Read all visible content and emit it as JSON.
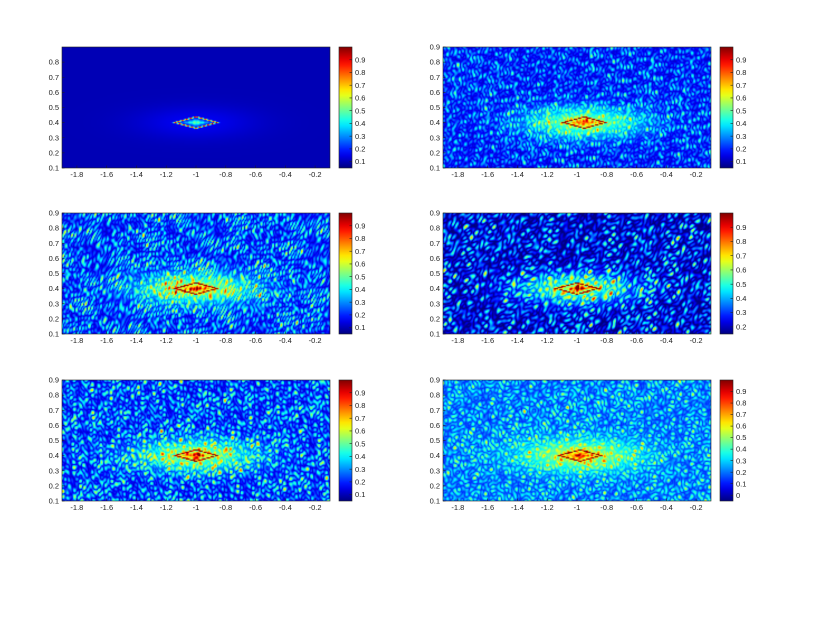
{
  "chart_data": [
    {
      "type": "heatmap",
      "panel": 1,
      "noise_level": 0.0,
      "xlim": [
        -1.9,
        -0.1
      ],
      "ylim": [
        0.1,
        0.9
      ],
      "x_ticks": [
        "-1.8",
        "-1.6",
        "-1.4",
        "-1.2",
        "-1",
        "-0.8",
        "-0.6",
        "-0.4",
        "-0.2"
      ],
      "y_ticks": [
        "0.1",
        "0.2",
        "0.3",
        "0.4",
        "0.5",
        "0.6",
        "0.7",
        "0.8"
      ],
      "colorbar_ticks": [
        "0.1",
        "0.2",
        "0.3",
        "0.4",
        "0.5",
        "0.6",
        "0.7",
        "0.8",
        "0.9"
      ],
      "clim": [
        0.05,
        1.0
      ],
      "peak_center": [
        -1.0,
        0.4
      ],
      "peak_extent_x": [
        -1.15,
        -0.85
      ],
      "peak_extent_y": [
        0.36,
        0.44
      ]
    },
    {
      "type": "heatmap",
      "panel": 2,
      "noise_level": 0.5,
      "xlim": [
        -1.9,
        -0.1
      ],
      "ylim": [
        0.1,
        0.9
      ],
      "x_ticks": [
        "-1.8",
        "-1.6",
        "-1.4",
        "-1.2",
        "-1",
        "-0.8",
        "-0.6",
        "-0.4",
        "-0.2"
      ],
      "y_ticks": [
        "0.1",
        "0.2",
        "0.3",
        "0.4",
        "0.5",
        "0.6",
        "0.7",
        "0.8",
        "0.9"
      ],
      "colorbar_ticks": [
        "0.1",
        "0.2",
        "0.3",
        "0.4",
        "0.5",
        "0.6",
        "0.7",
        "0.8",
        "0.9"
      ],
      "clim": [
        0.05,
        1.0
      ],
      "peak_center": [
        -0.95,
        0.4
      ],
      "peak_extent_x": [
        -1.1,
        -0.8
      ],
      "peak_extent_y": [
        0.36,
        0.44
      ]
    },
    {
      "type": "heatmap",
      "panel": 3,
      "noise_level": 0.7,
      "xlim": [
        -1.9,
        -0.1
      ],
      "ylim": [
        0.1,
        0.9
      ],
      "x_ticks": [
        "-1.8",
        "-1.6",
        "-1.4",
        "-1.2",
        "-1",
        "-0.8",
        "-0.6",
        "-0.4",
        "-0.2"
      ],
      "y_ticks": [
        "0.1",
        "0.2",
        "0.3",
        "0.4",
        "0.5",
        "0.6",
        "0.7",
        "0.8",
        "0.9"
      ],
      "colorbar_ticks": [
        "0.1",
        "0.2",
        "0.3",
        "0.4",
        "0.5",
        "0.6",
        "0.7",
        "0.8",
        "0.9"
      ],
      "clim": [
        0.05,
        1.0
      ],
      "peak_center": [
        -1.0,
        0.4
      ],
      "peak_extent_x": [
        -1.15,
        -0.85
      ],
      "peak_extent_y": [
        0.36,
        0.44
      ]
    },
    {
      "type": "heatmap",
      "panel": 4,
      "noise_level": 0.7,
      "xlim": [
        -1.9,
        -0.1
      ],
      "ylim": [
        0.1,
        0.9
      ],
      "x_ticks": [
        "-1.8",
        "-1.6",
        "-1.4",
        "-1.2",
        "-1",
        "-0.8",
        "-0.6",
        "-0.4",
        "-0.2"
      ],
      "y_ticks": [
        "0.1",
        "0.2",
        "0.3",
        "0.4",
        "0.5",
        "0.6",
        "0.7",
        "0.8",
        "0.9"
      ],
      "colorbar_ticks": [
        "0.2",
        "0.3",
        "0.4",
        "0.5",
        "0.6",
        "0.7",
        "0.8",
        "0.9"
      ],
      "clim": [
        0.15,
        1.0
      ],
      "peak_center": [
        -1.0,
        0.4
      ],
      "peak_extent_x": [
        -1.15,
        -0.85
      ],
      "peak_extent_y": [
        0.36,
        0.44
      ]
    },
    {
      "type": "heatmap",
      "panel": 5,
      "noise_level": 0.7,
      "xlim": [
        -1.9,
        -0.1
      ],
      "ylim": [
        0.1,
        0.9
      ],
      "x_ticks": [
        "-1.8",
        "-1.6",
        "-1.4",
        "-1.2",
        "-1",
        "-0.8",
        "-0.6",
        "-0.4",
        "-0.2"
      ],
      "y_ticks": [
        "0.1",
        "0.2",
        "0.3",
        "0.4",
        "0.5",
        "0.6",
        "0.7",
        "0.8",
        "0.9"
      ],
      "colorbar_ticks": [
        "0.1",
        "0.2",
        "0.3",
        "0.4",
        "0.5",
        "0.6",
        "0.7",
        "0.8",
        "0.9"
      ],
      "clim": [
        0.05,
        1.0
      ],
      "peak_center": [
        -1.0,
        0.4
      ],
      "peak_extent_x": [
        -1.15,
        -0.85
      ],
      "peak_extent_y": [
        0.36,
        0.44
      ]
    },
    {
      "type": "heatmap",
      "panel": 6,
      "noise_level": 0.6,
      "xlim": [
        -1.9,
        -0.1
      ],
      "ylim": [
        0.1,
        0.9
      ],
      "x_ticks": [
        "-1.8",
        "-1.6",
        "-1.4",
        "-1.2",
        "-1",
        "-0.8",
        "-0.6",
        "-0.4",
        "-0.2"
      ],
      "y_ticks": [
        "0.1",
        "0.2",
        "0.3",
        "0.4",
        "0.5",
        "0.6",
        "0.7",
        "0.8",
        "0.9"
      ],
      "colorbar_ticks": [
        "0",
        "0.1",
        "0.2",
        "0.3",
        "0.4",
        "0.5",
        "0.6",
        "0.7",
        "0.8",
        "0.9"
      ],
      "clim": [
        -0.05,
        1.0
      ],
      "peak_center": [
        -0.98,
        0.4
      ],
      "peak_extent_x": [
        -1.13,
        -0.83
      ],
      "peak_extent_y": [
        0.36,
        0.44
      ]
    }
  ],
  "colormap": "jet",
  "grid": false
}
